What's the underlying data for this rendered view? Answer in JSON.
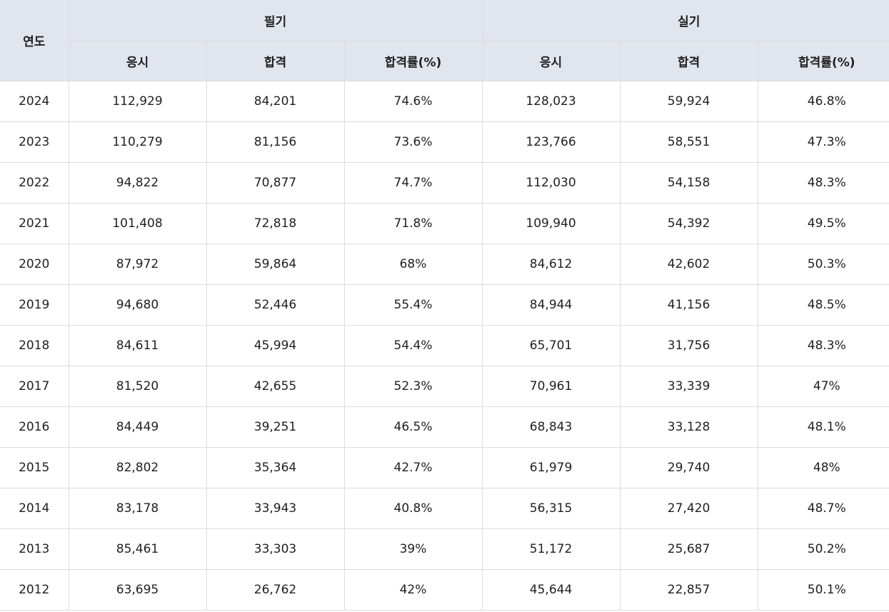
{
  "header": {
    "year": "연도",
    "group_written": "필기",
    "group_practical": "실기",
    "applicants": "응시",
    "passed": "합격",
    "pass_rate": "합격률(%)"
  },
  "rows": [
    {
      "year": "2024",
      "w_applicants": "112,929",
      "w_passed": "84,201",
      "w_rate": "74.6%",
      "p_applicants": "128,023",
      "p_passed": "59,924",
      "p_rate": "46.8%"
    },
    {
      "year": "2023",
      "w_applicants": "110,279",
      "w_passed": "81,156",
      "w_rate": "73.6%",
      "p_applicants": "123,766",
      "p_passed": "58,551",
      "p_rate": "47.3%"
    },
    {
      "year": "2022",
      "w_applicants": "94,822",
      "w_passed": "70,877",
      "w_rate": "74.7%",
      "p_applicants": "112,030",
      "p_passed": "54,158",
      "p_rate": "48.3%"
    },
    {
      "year": "2021",
      "w_applicants": "101,408",
      "w_passed": "72,818",
      "w_rate": "71.8%",
      "p_applicants": "109,940",
      "p_passed": "54,392",
      "p_rate": "49.5%"
    },
    {
      "year": "2020",
      "w_applicants": "87,972",
      "w_passed": "59,864",
      "w_rate": "68%",
      "p_applicants": "84,612",
      "p_passed": "42,602",
      "p_rate": "50.3%"
    },
    {
      "year": "2019",
      "w_applicants": "94,680",
      "w_passed": "52,446",
      "w_rate": "55.4%",
      "p_applicants": "84,944",
      "p_passed": "41,156",
      "p_rate": "48.5%"
    },
    {
      "year": "2018",
      "w_applicants": "84,611",
      "w_passed": "45,994",
      "w_rate": "54.4%",
      "p_applicants": "65,701",
      "p_passed": "31,756",
      "p_rate": "48.3%"
    },
    {
      "year": "2017",
      "w_applicants": "81,520",
      "w_passed": "42,655",
      "w_rate": "52.3%",
      "p_applicants": "70,961",
      "p_passed": "33,339",
      "p_rate": "47%"
    },
    {
      "year": "2016",
      "w_applicants": "84,449",
      "w_passed": "39,251",
      "w_rate": "46.5%",
      "p_applicants": "68,843",
      "p_passed": "33,128",
      "p_rate": "48.1%"
    },
    {
      "year": "2015",
      "w_applicants": "82,802",
      "w_passed": "35,364",
      "w_rate": "42.7%",
      "p_applicants": "61,979",
      "p_passed": "29,740",
      "p_rate": "48%"
    },
    {
      "year": "2014",
      "w_applicants": "83,178",
      "w_passed": "33,943",
      "w_rate": "40.8%",
      "p_applicants": "56,315",
      "p_passed": "27,420",
      "p_rate": "48.7%"
    },
    {
      "year": "2013",
      "w_applicants": "85,461",
      "w_passed": "33,303",
      "w_rate": "39%",
      "p_applicants": "51,172",
      "p_passed": "25,687",
      "p_rate": "50.2%"
    },
    {
      "year": "2012",
      "w_applicants": "63,695",
      "w_passed": "26,762",
      "w_rate": "42%",
      "p_applicants": "45,644",
      "p_passed": "22,857",
      "p_rate": "50.1%"
    }
  ]
}
